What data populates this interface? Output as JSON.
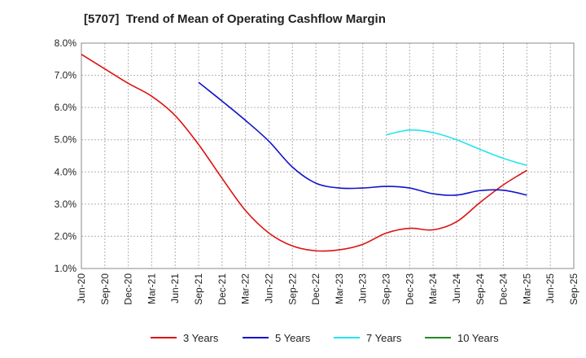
{
  "chart_data": {
    "type": "line",
    "title": "[5707]  Trend of Mean of Operating Cashflow Margin",
    "xlabel": "",
    "ylabel": "",
    "categories": [
      "Jun-20",
      "Sep-20",
      "Dec-20",
      "Mar-21",
      "Jun-21",
      "Sep-21",
      "Dec-21",
      "Mar-22",
      "Jun-22",
      "Sep-22",
      "Dec-22",
      "Mar-23",
      "Jun-23",
      "Sep-23",
      "Dec-23",
      "Mar-24",
      "Jun-24",
      "Sep-24",
      "Dec-24",
      "Mar-25",
      "Jun-25",
      "Sep-25"
    ],
    "y_ticks": [
      "1.0%",
      "2.0%",
      "3.0%",
      "4.0%",
      "5.0%",
      "6.0%",
      "7.0%",
      "8.0%"
    ],
    "ylim": [
      1.0,
      8.0
    ],
    "grid": true,
    "legend_position": "bottom",
    "series": [
      {
        "name": "3 Years",
        "color": "#dd1111",
        "values": [
          7.65,
          7.2,
          6.75,
          6.35,
          5.75,
          4.85,
          3.8,
          2.8,
          2.1,
          1.7,
          1.55,
          1.58,
          1.75,
          2.1,
          2.25,
          2.2,
          2.45,
          3.05,
          3.6,
          4.05,
          null,
          null
        ]
      },
      {
        "name": "5 Years",
        "color": "#1111cc",
        "values": [
          null,
          null,
          null,
          null,
          null,
          6.78,
          6.2,
          5.6,
          4.95,
          4.15,
          3.65,
          3.5,
          3.5,
          3.55,
          3.5,
          3.32,
          3.28,
          3.42,
          3.43,
          3.28,
          null,
          null
        ]
      },
      {
        "name": "7 Years",
        "color": "#22e5ee",
        "values": [
          null,
          null,
          null,
          null,
          null,
          null,
          null,
          null,
          null,
          null,
          null,
          null,
          null,
          5.15,
          5.3,
          5.22,
          5.0,
          4.7,
          4.42,
          4.2,
          null,
          null
        ]
      },
      {
        "name": "10 Years",
        "color": "#228822",
        "values": [
          null,
          null,
          null,
          null,
          null,
          null,
          null,
          null,
          null,
          null,
          null,
          null,
          null,
          null,
          null,
          null,
          null,
          null,
          null,
          null,
          null,
          null
        ]
      }
    ]
  }
}
